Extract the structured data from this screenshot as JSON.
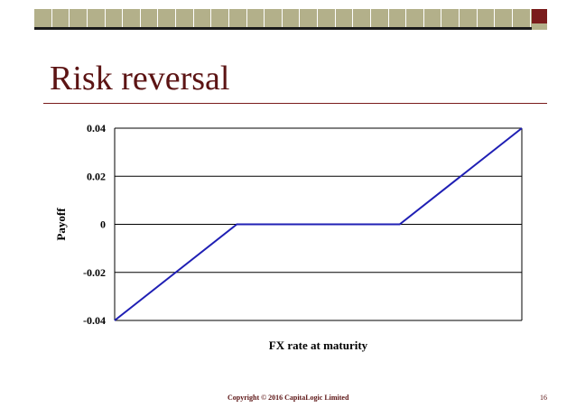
{
  "slide": {
    "title": "Risk reversal",
    "footer_copyright": "Copyright © 2016 CapitaLogic Limited",
    "page_number": "16"
  },
  "colors": {
    "title": "#5c1414",
    "header_bar": "#b3b08a",
    "header_accent": "#7a1c1c",
    "series_line": "#1f1fb4"
  },
  "chart_data": {
    "type": "line",
    "title": "",
    "xlabel": "FX rate at maturity",
    "ylabel": "Payoff",
    "ylim": [
      -0.04,
      0.04
    ],
    "y_ticks": [
      "0.04",
      "0.02",
      "0",
      "-0.02",
      "-0.04"
    ],
    "grid": true,
    "legend": "none",
    "series": [
      {
        "x": [
          0,
          0.3,
          0.7,
          1.0
        ],
        "values": [
          -0.04,
          0,
          0,
          0.04
        ]
      }
    ]
  }
}
